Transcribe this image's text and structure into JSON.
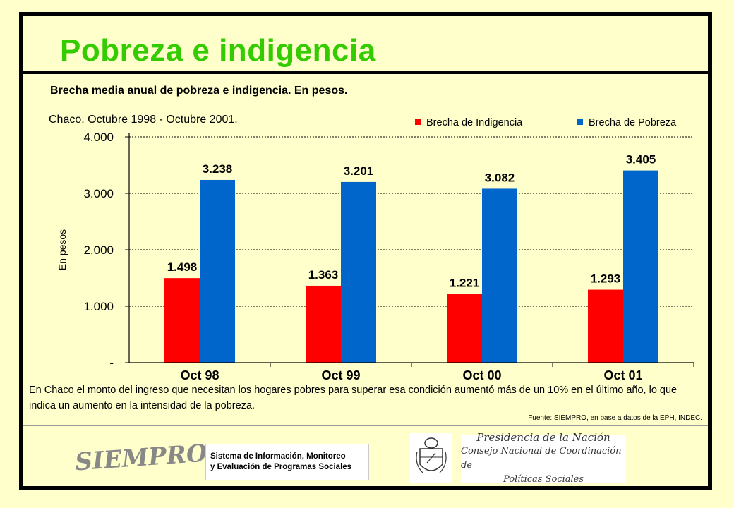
{
  "slide": {
    "title": "Pobreza e indigencia",
    "subtitle": "Brecha media anual de pobreza e indigencia. En pesos.",
    "region_label": "Chaco. Octubre 1998 - Octubre 2001.",
    "note": "En Chaco el monto del ingreso que necesitan los hogares pobres para superar esa condición aumentó más de un 10% en el último año, lo que indica un aumento en la intensidad de la pobreza.",
    "source": "Fuente: SIEMPRO, en base a datos de la EPH, INDEC."
  },
  "logos": {
    "siempro": "SIEMPRO",
    "sistema_line1": "Sistema de Información, Monitoreo",
    "sistema_line2": "y Evaluación de Programas Sociales",
    "presidencia_line1": "Presidencia de la Nación",
    "presidencia_line2": "Consejo Nacional de Coordinación de",
    "presidencia_line3": "Políticas Sociales"
  },
  "colors": {
    "indigencia": "#ff0000",
    "pobreza": "#0066cc",
    "title": "#33cc00"
  },
  "chart_data": {
    "type": "bar",
    "categories": [
      "Oct 98",
      "Oct 99",
      "Oct 00",
      "Oct 01"
    ],
    "series": [
      {
        "name": "Brecha de Indigencia",
        "values": [
          1498,
          1363,
          1221,
          1293
        ],
        "labels": [
          "1.498",
          "1.363",
          "1.221",
          "1.293"
        ]
      },
      {
        "name": "Brecha de Pobreza",
        "values": [
          3238,
          3201,
          3082,
          3405
        ],
        "labels": [
          "3.238",
          "3.201",
          "3.082",
          "3.405"
        ]
      }
    ],
    "ylabel": "En pesos",
    "ylim": [
      0,
      4000
    ],
    "yticks": [
      0,
      1000,
      2000,
      3000,
      4000
    ],
    "ytick_labels": [
      "-",
      "1.000",
      "2.000",
      "3.000",
      "4.000"
    ],
    "grid": "horizontal dotted",
    "legend": "top-right"
  }
}
